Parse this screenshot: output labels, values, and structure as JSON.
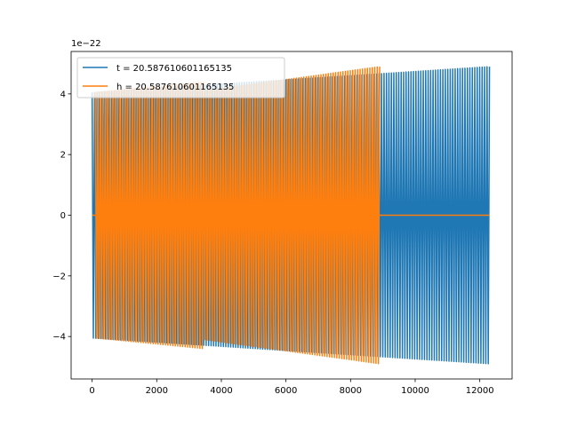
{
  "chart_data": {
    "type": "line",
    "title": "",
    "xlabel": "",
    "ylabel": "",
    "y_offset_text": "1e−22",
    "xlim": [
      -650,
      13000
    ],
    "ylim": [
      -5.4,
      5.4
    ],
    "x_ticks": [
      0,
      2000,
      4000,
      6000,
      8000,
      10000,
      12000
    ],
    "y_ticks": [
      -4,
      -2,
      0,
      2,
      4
    ],
    "y_tick_labels": [
      "−4",
      "−2",
      "0",
      "2",
      "4"
    ],
    "grid": false,
    "legend_position": "top-left",
    "series": [
      {
        "name": "t = 20.587610601165135",
        "color": "#1f77b4",
        "x_start": 0,
        "x_end": 12300,
        "amplitude_start": 4.05,
        "amplitude_end": 4.9,
        "cycles": 162,
        "center": 0
      },
      {
        "name": "h = 20.587610601165135",
        "color": "#ff7f0e",
        "segments": [
          {
            "x_start": 0,
            "x_end": 3450,
            "kind": "flat",
            "value": 0
          },
          {
            "x_start": 100,
            "x_end": 3450,
            "kind": "oscillation",
            "amplitude_start": 4.05,
            "amplitude_end": 4.4,
            "cycles": 44
          },
          {
            "x_start": 3450,
            "x_end": 8900,
            "kind": "oscillation",
            "amplitude_start": 4.1,
            "amplitude_end": 4.9,
            "cycles": 72
          },
          {
            "x_start": 8900,
            "x_end": 12300,
            "kind": "flat",
            "value": 0
          }
        ]
      }
    ]
  }
}
